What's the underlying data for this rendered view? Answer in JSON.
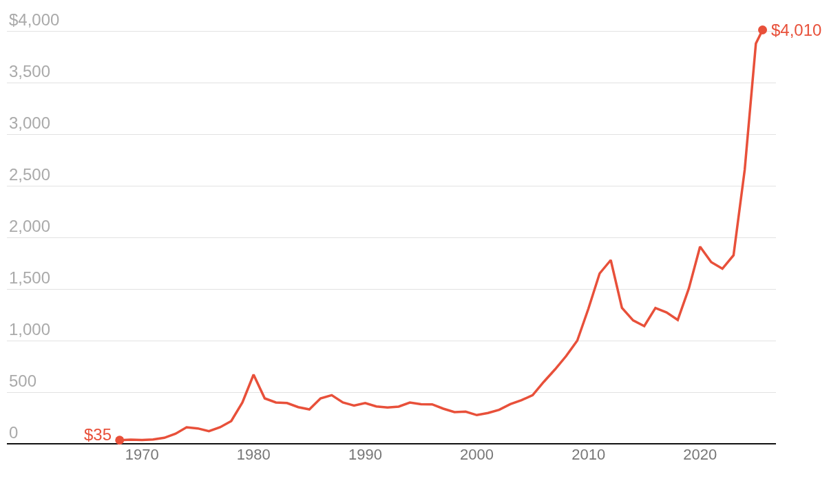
{
  "chart_data": {
    "type": "line",
    "x": [
      1968,
      1969,
      1970,
      1971,
      1972,
      1973,
      1974,
      1975,
      1976,
      1977,
      1978,
      1979,
      1980,
      1981,
      1982,
      1983,
      1984,
      1985,
      1986,
      1987,
      1988,
      1989,
      1990,
      1991,
      1992,
      1993,
      1994,
      1995,
      1996,
      1997,
      1998,
      1999,
      2000,
      2001,
      2002,
      2003,
      2004,
      2005,
      2006,
      2007,
      2008,
      2009,
      2010,
      2011,
      2012,
      2013,
      2014,
      2015,
      2016,
      2017,
      2018,
      2019,
      2020,
      2021,
      2022,
      2023,
      2024,
      2025,
      2025.6
    ],
    "series": [
      {
        "color": "#e8503a",
        "values": [
          35,
          40,
          36,
          41,
          58,
          97,
          160,
          149,
          122,
          160,
          220,
          400,
          670,
          440,
          400,
          395,
          355,
          333,
          440,
          471,
          400,
          371,
          395,
          362,
          351,
          360,
          400,
          384,
          382,
          340,
          307,
          311,
          278,
          298,
          329,
          384,
          422,
          471,
          600,
          720,
          850,
          1000,
          1310,
          1650,
          1780,
          1318,
          1196,
          1140,
          1316,
          1273,
          1200,
          1507,
          1910,
          1760,
          1696,
          1827,
          2655,
          3878,
          4010
        ]
      }
    ],
    "xlim": [
      1957.9,
      2026.8
    ],
    "ylim": [
      0,
      4300
    ],
    "xticks": [
      1970,
      1980,
      1990,
      2000,
      2010,
      2020
    ],
    "yticks": [
      {
        "value": 0,
        "label": "0"
      },
      {
        "value": 500,
        "label": "500"
      },
      {
        "value": 1000,
        "label": "1,000"
      },
      {
        "value": 1500,
        "label": "1,500"
      },
      {
        "value": 2000,
        "label": "2,000"
      },
      {
        "value": 2500,
        "label": "2,500"
      },
      {
        "value": 3000,
        "label": "3,000"
      },
      {
        "value": 3500,
        "label": "3,500"
      },
      {
        "value": 4000,
        "label": "$4,000"
      }
    ],
    "grid": "y",
    "legend": false,
    "annotations": [
      {
        "text": "$35",
        "x": 1968,
        "y": 35
      },
      {
        "text": "$4,010",
        "x": 2025.6,
        "y": 4010
      }
    ]
  }
}
